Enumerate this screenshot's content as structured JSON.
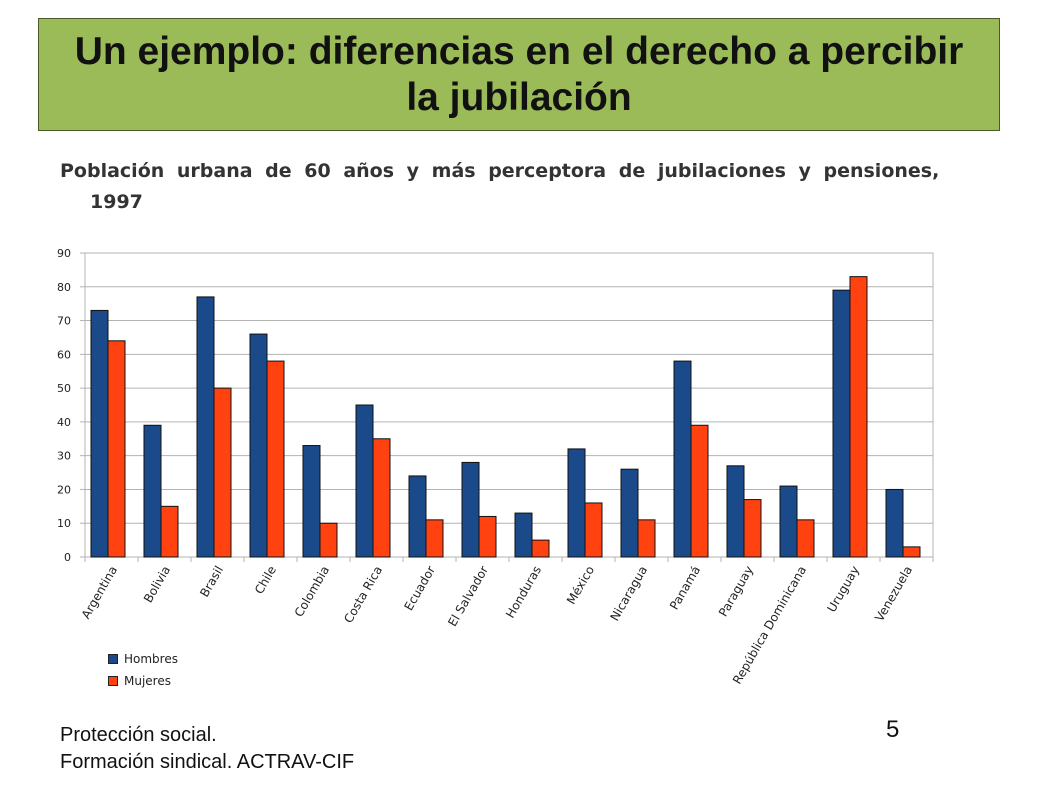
{
  "slide": {
    "title": "Un ejemplo: diferencias en el derecho a percibir la jubilación",
    "footer_line1": "Protección social.",
    "footer_line2": "Formación sindical.  ACTRAV-CIF",
    "page_number": "5"
  },
  "chart_data": {
    "type": "bar",
    "title_line1": "Población urbana de 60 años y más perceptora de jubilaciones y pensiones,",
    "title_line2": "1997",
    "categories": [
      "Argentina",
      "Bolivia",
      "Brasil",
      "Chile",
      "Colombia",
      "Costa Rica",
      "Ecuador",
      "El Salvador",
      "Honduras",
      "México",
      "Nicaragua",
      "Panamá",
      "Paraguay",
      "República Dominicana",
      "Uruguay",
      "Venezuela"
    ],
    "series": [
      {
        "name": "Hombres",
        "color": "#1a4a8a",
        "values": [
          73,
          39,
          77,
          66,
          33,
          45,
          24,
          28,
          13,
          32,
          26,
          58,
          27,
          21,
          79,
          20
        ]
      },
      {
        "name": "Mujeres",
        "color": "#ff4210",
        "values": [
          64,
          15,
          50,
          58,
          10,
          35,
          11,
          12,
          5,
          16,
          11,
          39,
          17,
          11,
          83,
          3
        ]
      }
    ],
    "ylim": [
      0,
      90
    ],
    "yticks": [
      0,
      10,
      20,
      30,
      40,
      50,
      60,
      70,
      80,
      90
    ],
    "grid": true,
    "legend_position": "bottom-left"
  }
}
